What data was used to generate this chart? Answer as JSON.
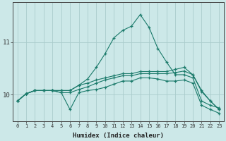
{
  "title": "",
  "xlabel": "Humidex (Indice chaleur)",
  "ylabel": "",
  "background_color": "#cce8e8",
  "grid_color": "#aacccc",
  "line_color": "#1a7a6a",
  "x_values": [
    0,
    1,
    2,
    3,
    4,
    5,
    6,
    7,
    8,
    9,
    10,
    11,
    12,
    13,
    14,
    15,
    16,
    17,
    18,
    19,
    20,
    21,
    22,
    23
  ],
  "series": [
    [
      9.88,
      10.02,
      10.08,
      10.08,
      10.08,
      10.08,
      10.08,
      10.18,
      10.3,
      10.52,
      10.78,
      11.08,
      11.22,
      11.3,
      11.52,
      11.28,
      10.88,
      10.62,
      10.38,
      10.38,
      10.32,
      9.88,
      9.8,
      9.75
    ],
    [
      9.88,
      10.02,
      10.08,
      10.08,
      10.08,
      10.04,
      10.04,
      10.1,
      10.15,
      10.22,
      10.28,
      10.32,
      10.36,
      10.36,
      10.4,
      10.4,
      10.4,
      10.4,
      10.42,
      10.45,
      10.38,
      10.08,
      9.88,
      9.72
    ],
    [
      9.88,
      10.02,
      10.08,
      10.08,
      10.08,
      10.08,
      10.08,
      10.18,
      10.22,
      10.28,
      10.32,
      10.36,
      10.4,
      10.4,
      10.44,
      10.44,
      10.44,
      10.44,
      10.48,
      10.52,
      10.38,
      10.06,
      9.88,
      9.72
    ],
    [
      9.88,
      10.02,
      10.08,
      10.08,
      10.08,
      10.04,
      9.72,
      10.04,
      10.08,
      10.1,
      10.14,
      10.2,
      10.26,
      10.26,
      10.32,
      10.32,
      10.3,
      10.26,
      10.26,
      10.28,
      10.22,
      9.8,
      9.72,
      9.65
    ]
  ],
  "yticks": [
    10,
    11
  ],
  "ylim": [
    9.5,
    11.75
  ],
  "xlim": [
    -0.5,
    23.5
  ],
  "figsize": [
    3.2,
    2.0
  ],
  "dpi": 100
}
